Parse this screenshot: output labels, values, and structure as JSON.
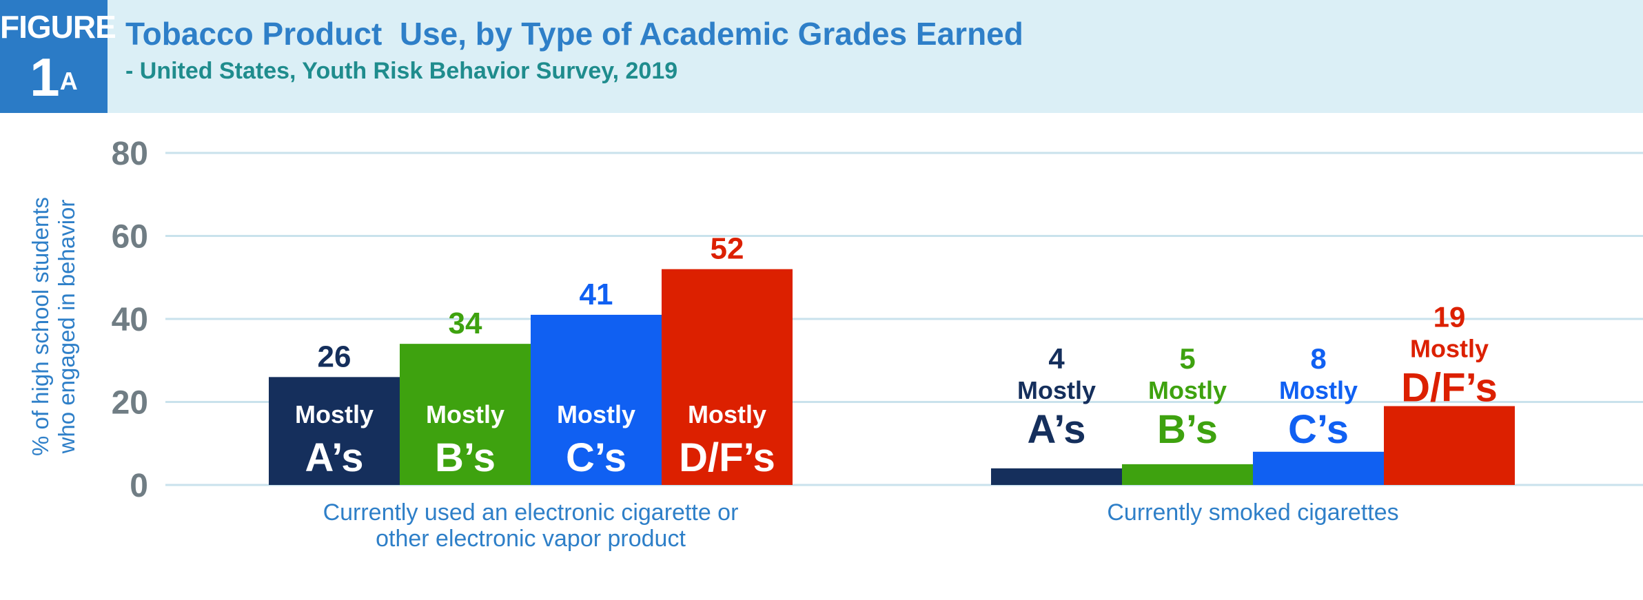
{
  "figure": {
    "label": "FIGURE",
    "number": "1",
    "suffix": "A"
  },
  "title": "Tobacco Product  Use, by Type of Academic Grades Earned",
  "subtitle": "- United States, Youth Risk Behavior Survey, 2019",
  "colors": {
    "header_bg": "#dbeff6",
    "badge_bg": "#2b7bc6",
    "axis_label": "#2e7fc8",
    "tick": "#707d84",
    "gridline": "#c9e2ec",
    "mostly_as": "#152f5c",
    "mostly_bs": "#3ea20f",
    "mostly_cs": "#1060f2",
    "mostly_dfs": "#dc2000"
  },
  "chart_data": {
    "type": "bar",
    "ylabel": [
      "% of high school students",
      "who engaged in behavior"
    ],
    "ylim": [
      0,
      80
    ],
    "yticks": [
      "0",
      "20",
      "40",
      "60",
      "80"
    ],
    "grid": true,
    "categories": [
      [
        "Currently used an electronic cigarette or",
        "other electronic vapor product"
      ],
      [
        "Currently smoked cigarettes"
      ]
    ],
    "series": [
      {
        "label": "Mostly",
        "grade": "A’s",
        "color": "#152f5c",
        "values": [
          26,
          4
        ],
        "data_labels": [
          "26",
          "4"
        ]
      },
      {
        "label": "Mostly",
        "grade": "B’s",
        "color": "#3ea20f",
        "values": [
          34,
          5
        ],
        "data_labels": [
          "34",
          "5"
        ]
      },
      {
        "label": "Mostly",
        "grade": "C’s",
        "color": "#1060f2",
        "values": [
          41,
          8
        ],
        "data_labels": [
          "41",
          "8"
        ]
      },
      {
        "label": "Mostly",
        "grade": "D/F’s",
        "color": "#dc2000",
        "values": [
          52,
          19
        ],
        "data_labels": [
          "52",
          "19"
        ]
      }
    ]
  }
}
